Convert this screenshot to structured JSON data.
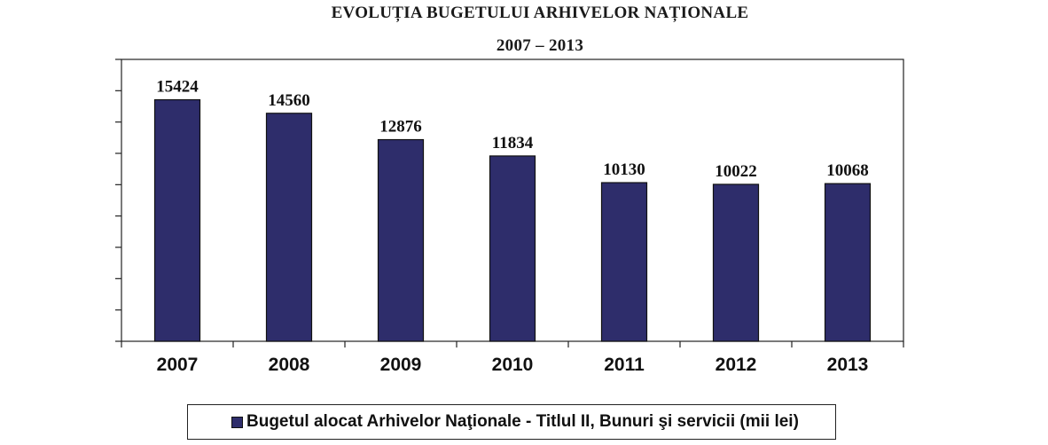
{
  "chart_data": {
    "type": "bar",
    "title": "EVOLUȚIA BUGETULUI ARHIVELOR NAȚIONALE",
    "subtitle": "2007 – 2013",
    "categories": [
      "2007",
      "2008",
      "2009",
      "2010",
      "2011",
      "2012",
      "2013"
    ],
    "series": [
      {
        "name": "Bugetul alocat Arhivelor Naţionale - Titlul II, Bunuri şi servicii  (mii lei)",
        "values": [
          15424,
          14560,
          12876,
          11834,
          10130,
          10022,
          10068
        ],
        "color": "#2e2d6b"
      }
    ],
    "xlabel": "",
    "ylabel": "",
    "ylim": [
      0,
      18000
    ],
    "y_ticks_labeled": false,
    "grid": false,
    "legend_position": "bottom",
    "data_labels": true
  }
}
